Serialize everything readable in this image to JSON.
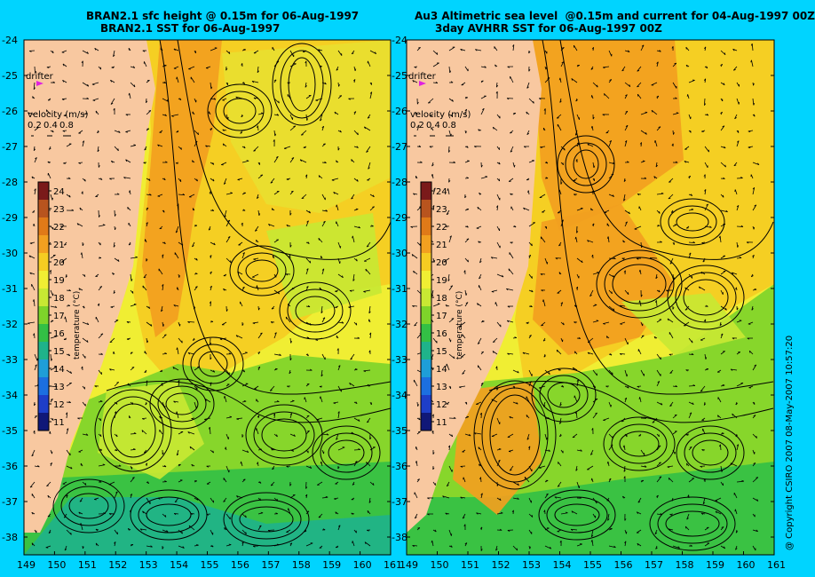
{
  "panels": [
    {
      "id": "left",
      "title_line1": "BRAN2.1 sfc height @ 0.15m for 06-Aug-1997",
      "title_line2": "BRAN2.1 SST for 06-Aug-1997",
      "drifter_label": "drifter",
      "velocity_label": "velocity (m/s)",
      "velocity_scale": [
        "0.2",
        "0.4",
        "0.8"
      ],
      "colorbar_label": "temperature (°C)"
    },
    {
      "id": "right",
      "title_line1": "Au3 Altimetric sea level  @0.15m and current for 04-Aug-1997 00Z",
      "title_line2": "3day AVHRR SST for 06-Aug-1997 00Z",
      "drifter_label": "drifter",
      "velocity_label": "velocity (m/s)",
      "velocity_scale": [
        "0.2",
        "0.4",
        "0.8"
      ],
      "colorbar_label": "temperature (°C)"
    }
  ],
  "colorbar_ticks": [
    "24",
    "23",
    "22",
    "21",
    "20",
    "19",
    "18",
    "17",
    "16",
    "15",
    "14",
    "13",
    "12",
    "11"
  ],
  "colorbar_colors": [
    "#7a1a1a",
    "#b8541e",
    "#e07a18",
    "#f2a020",
    "#f5cc22",
    "#f0ee33",
    "#c8e833",
    "#7ed42a",
    "#33c045",
    "#1fb38a",
    "#1e9ed8",
    "#1c6fe0",
    "#1e3ec8",
    "#101878"
  ],
  "lat_labels": [
    "-24",
    "-25",
    "-26",
    "-27",
    "-28",
    "-29",
    "-30",
    "-31",
    "-32",
    "-33",
    "-34",
    "-35",
    "-36",
    "-37",
    "-38"
  ],
  "lon_labels": [
    "149",
    "150",
    "151",
    "152",
    "153",
    "154",
    "155",
    "156",
    "157",
    "158",
    "159",
    "160",
    "161"
  ],
  "copyright": "@ Copyright CSIRO 2007  08-May-2007 10:57:20",
  "colors": {
    "background": "#00d4ff",
    "land": "#f8c8a0",
    "drifter_marker": "#e020e0"
  }
}
